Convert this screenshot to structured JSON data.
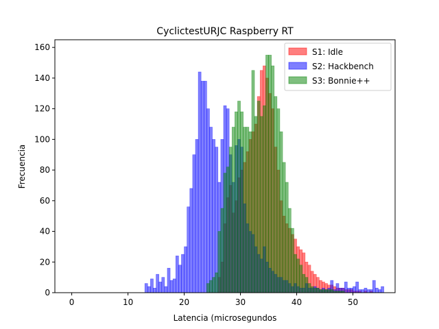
{
  "chart_data": {
    "type": "bar",
    "title": "CyclictestURJC Raspberry RT",
    "xlabel": "Latencia (microsegundos",
    "ylabel": "Frecuencia",
    "xlim": [
      -3,
      57.5
    ],
    "ylim": [
      0,
      165
    ],
    "xticks": [
      0,
      10,
      20,
      30,
      40,
      50
    ],
    "yticks": [
      0,
      20,
      40,
      60,
      80,
      100,
      120,
      140,
      160
    ],
    "bin_width": 0.5,
    "legend_position": "top-right",
    "series": [
      {
        "name": "S1: Idle",
        "color": "#ff0000",
        "x": [
          26,
          26.5,
          27,
          27.5,
          28,
          28.5,
          29,
          29.5,
          30,
          30.5,
          31,
          31.5,
          32,
          32.5,
          33,
          33.5,
          34,
          34.5,
          35,
          35.5,
          36,
          36.5,
          37,
          37.5,
          38,
          38.5,
          39,
          39.5,
          40,
          40.5,
          41,
          41.5,
          42,
          42.5,
          43,
          43.5,
          44,
          44.5,
          45,
          45.5,
          46,
          46.5,
          47,
          47.5,
          48,
          48.5,
          49,
          49.5,
          50,
          50.5,
          51,
          52,
          53
        ],
        "values": [
          10,
          20,
          45,
          62,
          70,
          52,
          60,
          75,
          80,
          85,
          92,
          100,
          105,
          110,
          128,
          145,
          148,
          140,
          130,
          120,
          95,
          80,
          60,
          50,
          45,
          42,
          38,
          35,
          30,
          28,
          26,
          20,
          18,
          14,
          12,
          10,
          8,
          7,
          6,
          5,
          5,
          4,
          3,
          3,
          3,
          2,
          2,
          2,
          1,
          1,
          1,
          1,
          1
        ]
      },
      {
        "name": "S2: Hackbench",
        "color": "#0000ff",
        "x": [
          13,
          13.5,
          14,
          14.5,
          15,
          15.5,
          16,
          16.5,
          17,
          17.5,
          18,
          18.5,
          19,
          19.5,
          20,
          20.5,
          21,
          21.5,
          22,
          22.5,
          23,
          23.5,
          24,
          24.5,
          25,
          25.5,
          26,
          26.5,
          27,
          27.5,
          28,
          28.5,
          29,
          29.5,
          30,
          30.5,
          31,
          31.5,
          32,
          32.5,
          33,
          33.5,
          34,
          34.5,
          35,
          35.5,
          36,
          36.5,
          37,
          37.5,
          38,
          38.5,
          39,
          39.5,
          40,
          40.5,
          41,
          41.5,
          42,
          42.5,
          43,
          43.5,
          44,
          44.5,
          45,
          45.5,
          46,
          46.5,
          47,
          47.5,
          48,
          48.5,
          49,
          49.5,
          50,
          50.5,
          51,
          51.5,
          52,
          52.5,
          53,
          53.5,
          54,
          54.5,
          55
        ],
        "values": [
          6,
          4,
          9,
          3,
          12,
          7,
          10,
          4,
          16,
          8,
          9,
          24,
          18,
          25,
          30,
          56,
          68,
          90,
          100,
          144,
          138,
          138,
          120,
          108,
          100,
          95,
          72,
          100,
          122,
          120,
          90,
          72,
          96,
          100,
          95,
          58,
          45,
          40,
          38,
          30,
          25,
          22,
          30,
          20,
          16,
          14,
          12,
          10,
          10,
          8,
          8,
          6,
          4,
          6,
          4,
          3,
          3,
          6,
          3,
          3,
          4,
          3,
          2,
          3,
          2,
          3,
          8,
          2,
          6,
          3,
          3,
          7,
          3,
          3,
          4,
          7,
          2,
          2,
          3,
          2,
          2,
          8,
          3,
          2,
          4
        ]
      },
      {
        "name": "S3: Bonnie++",
        "color": "#008000",
        "x": [
          24,
          24.5,
          25,
          25.5,
          26,
          26.5,
          27,
          27.5,
          28,
          28.5,
          29,
          29.5,
          30,
          30.5,
          31,
          31.5,
          32,
          32.5,
          33,
          33.5,
          34,
          34.5,
          35,
          35.5,
          36,
          36.5,
          37,
          37.5,
          38,
          38.5,
          39,
          39.5,
          40,
          40.5,
          41,
          41.5,
          42,
          42.5,
          43,
          43.5,
          44,
          44.5,
          45,
          45.5,
          46,
          46.5,
          47,
          47.5,
          48
        ],
        "values": [
          6,
          8,
          10,
          13,
          40,
          55,
          78,
          82,
          95,
          108,
          118,
          125,
          118,
          108,
          108,
          105,
          145,
          115,
          125,
          115,
          122,
          155,
          155,
          148,
          128,
          120,
          105,
          85,
          72,
          55,
          42,
          25,
          22,
          18,
          12,
          10,
          6,
          4,
          3,
          3,
          2,
          2,
          2,
          2,
          2,
          1,
          1,
          1,
          1
        ]
      }
    ]
  }
}
